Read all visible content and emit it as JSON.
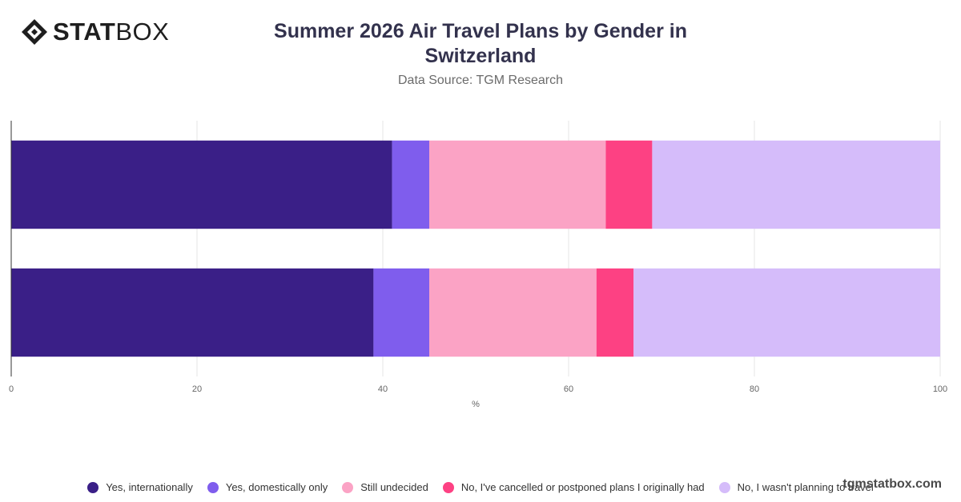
{
  "brand": {
    "logo_strong": "STAT",
    "logo_light": "BOX",
    "watermark": "tgmstatbox.com"
  },
  "header": {
    "title": "Summer 2026 Air Travel Plans by Gender in Switzerland",
    "subtitle": "Data Source: TGM Research"
  },
  "chart_data": {
    "type": "bar",
    "orientation": "horizontal",
    "stacked": true,
    "categories": [
      "",
      ""
    ],
    "xlabel": "%",
    "xlim": [
      0,
      100
    ],
    "xticks": [
      0,
      20,
      40,
      60,
      80,
      100
    ],
    "grid": true,
    "legend_position": "bottom",
    "series": [
      {
        "name": "Yes, internationally",
        "color": "#3a1f87",
        "values": [
          41,
          39
        ]
      },
      {
        "name": "Yes, domestically only",
        "color": "#7f5ded",
        "values": [
          4,
          6
        ]
      },
      {
        "name": "Still undecided",
        "color": "#fba3c5",
        "values": [
          19,
          18
        ]
      },
      {
        "name": "No, I've cancelled or postponed plans I originally had",
        "color": "#fd4183",
        "values": [
          5,
          4
        ]
      },
      {
        "name": "No, I wasn't planning to travel",
        "color": "#d5bcfa",
        "values": [
          31,
          33
        ]
      }
    ]
  }
}
